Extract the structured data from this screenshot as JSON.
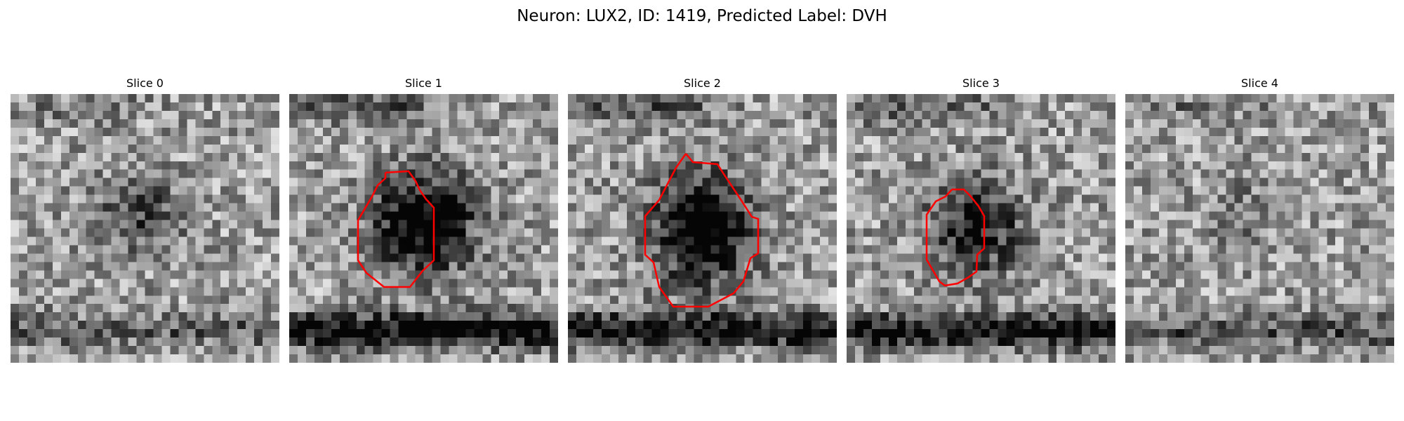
{
  "figure": {
    "title": "Neuron: LUX2, ID: 1419, Predicted Label: DVH"
  },
  "panels": [
    {
      "title": "Slice 0",
      "contour": false,
      "blob": [
        0.48,
        0.45,
        0.18,
        0.16,
        0.35
      ],
      "dark_band": 0.25
    },
    {
      "title": "Slice 1",
      "contour": true,
      "blob": [
        0.5,
        0.48,
        0.22,
        0.22,
        0.75
      ],
      "dark_band": 0.65
    },
    {
      "title": "Slice 2",
      "contour": true,
      "blob": [
        0.5,
        0.5,
        0.22,
        0.25,
        0.75
      ],
      "dark_band": 0.6
    },
    {
      "title": "Slice 3",
      "contour": true,
      "blob": [
        0.48,
        0.5,
        0.2,
        0.2,
        0.55
      ],
      "dark_band": 0.6
    },
    {
      "title": "Slice 4",
      "contour": false,
      "blob": [
        0.45,
        0.45,
        0.15,
        0.15,
        0.15
      ],
      "dark_band": 0.3
    }
  ],
  "colors": {
    "contour": "#ff0000"
  }
}
